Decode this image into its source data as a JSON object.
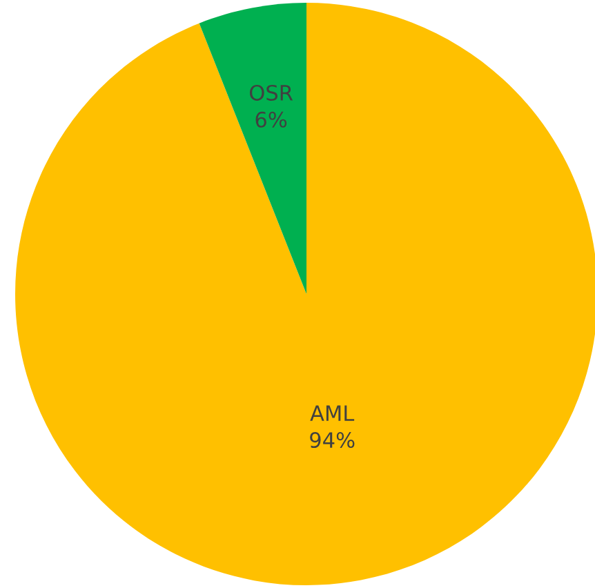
{
  "chart_data": {
    "type": "pie",
    "categories": [
      "AML",
      "OSR"
    ],
    "values": [
      94,
      6
    ],
    "value_labels": [
      "94%",
      "6%"
    ],
    "colors": [
      "#ffc000",
      "#00b050"
    ]
  }
}
